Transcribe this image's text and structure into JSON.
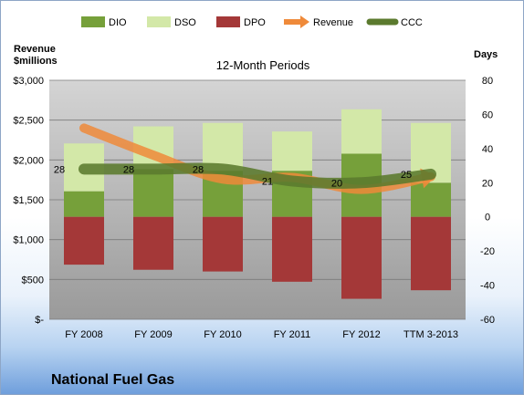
{
  "chart_data": {
    "type": "bar",
    "title": "12-Month Periods",
    "company": "National Fuel Gas",
    "left_axis_label_line1": "Revenue",
    "left_axis_label_line2": "$millions",
    "right_axis_label": "Days",
    "categories": [
      "FY 2008",
      "FY 2009",
      "FY 2010",
      "FY 2011",
      "FY 2012",
      "TTM 3-2013"
    ],
    "left_axis": {
      "min": 0,
      "max": 3000,
      "step": 500,
      "ticks": [
        "$-",
        "$500",
        "$1,000",
        "$1,500",
        "$2,000",
        "$2,500",
        "$3,000"
      ]
    },
    "right_axis": {
      "min": -60,
      "max": 80,
      "step": 20,
      "ticks": [
        "-60",
        "-40",
        "-20",
        "0",
        "20",
        "40",
        "60",
        "80"
      ]
    },
    "series": [
      {
        "name": "DIO",
        "color": "#76a03a",
        "axis": "days",
        "values": [
          15,
          28,
          27,
          27,
          37,
          20
        ]
      },
      {
        "name": "DSO",
        "color": "#d3e8a8",
        "axis": "days",
        "values": [
          28,
          25,
          28,
          23,
          26,
          35
        ]
      },
      {
        "name": "DPO",
        "color": "#a43838",
        "axis": "days",
        "values": [
          -28,
          -31,
          -32,
          -38,
          -48,
          -43
        ]
      },
      {
        "name": "Revenue",
        "color": "#ef8a3a",
        "axis": "revenue",
        "values": [
          2400,
          2060,
          1760,
          1780,
          1630,
          1790
        ]
      },
      {
        "name": "CCC",
        "color": "#5b7a2e",
        "axis": "days",
        "values": [
          28,
          28,
          28,
          21,
          20,
          25
        ],
        "labels": [
          "28",
          "28",
          "28",
          "21",
          "20",
          "25"
        ]
      }
    ],
    "grid": true,
    "legend_position": "top"
  }
}
